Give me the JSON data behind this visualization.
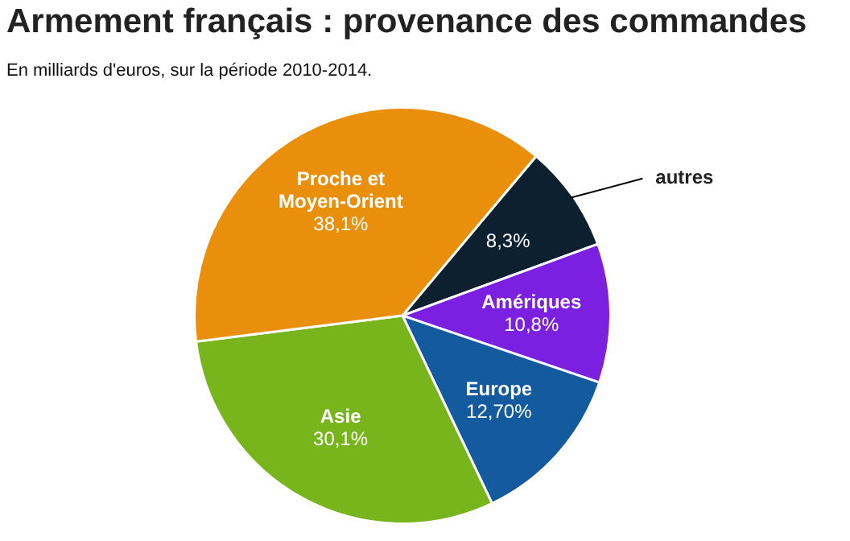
{
  "chart_data": {
    "type": "pie",
    "title": "Armement français : provenance des commandes",
    "subtitle": "En milliards d'euros, sur la période 2010-2014.",
    "categories": [
      "autres",
      "Amériques",
      "Europe",
      "Asie",
      "Proche et\nMoyen-Orient"
    ],
    "values": [
      8.3,
      10.8,
      12.7,
      30.1,
      38.1
    ],
    "value_labels": [
      "8,3%",
      "10,8%",
      "12,70%",
      "30,1%",
      "38,1%"
    ],
    "colors": [
      "#0c2030",
      "#7b1fe0",
      "#145a9e",
      "#78b41c",
      "#ea8f0c"
    ],
    "legend": false
  }
}
